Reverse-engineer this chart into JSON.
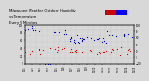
{
  "title_lines": [
    "Milwaukee Weather Outdoor Humidity",
    "vs Temperature",
    "Every 5 Minutes"
  ],
  "background_color": "#d8d8d8",
  "plot_bg_color": "#d8d8d8",
  "grid_color": "#999999",
  "humidity_color": "#0000cc",
  "temp_color": "#cc0000",
  "legend_red": "#cc0000",
  "legend_blue": "#0000ff",
  "ylim_left": [
    0,
    100
  ],
  "ylim_right": [
    -20,
    100
  ],
  "title_fontsize": 2.8,
  "tick_fontsize": 2.0,
  "dot_size": 0.8
}
